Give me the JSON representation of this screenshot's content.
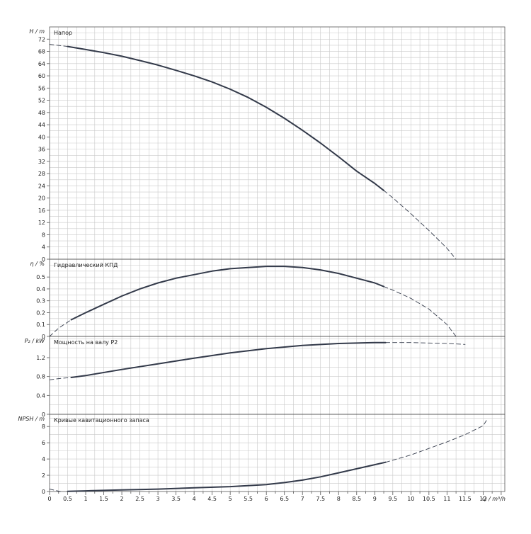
{
  "chart_data": [
    {
      "type": "line",
      "title": "Напор",
      "ylabel": "H / m",
      "ylim": [
        0,
        76
      ],
      "yticks": [
        0,
        4,
        8,
        12,
        16,
        20,
        24,
        28,
        32,
        36,
        40,
        44,
        48,
        52,
        56,
        60,
        64,
        68,
        72
      ],
      "series": [
        {
          "style": "dashed",
          "x": [
            0,
            0.5
          ],
          "y": [
            70.3,
            69.6
          ]
        },
        {
          "style": "solid",
          "x": [
            0.5,
            1,
            1.5,
            2,
            2.5,
            3,
            3.5,
            4,
            4.5,
            5,
            5.5,
            6,
            6.5,
            7,
            7.5,
            8,
            8.5,
            9,
            9.25
          ],
          "y": [
            69.6,
            68.6,
            67.6,
            66.4,
            65.0,
            63.5,
            61.8,
            60.0,
            58.0,
            55.6,
            52.9,
            49.7,
            46.1,
            42.2,
            38.0,
            33.5,
            28.8,
            24.8,
            22.5
          ]
        },
        {
          "style": "dashed",
          "x": [
            9.25,
            9.5,
            10,
            10.5,
            11,
            11.25
          ],
          "y": [
            22.5,
            20.1,
            14.9,
            9.4,
            3.6,
            0
          ]
        }
      ]
    },
    {
      "type": "line",
      "title": "Гидравлический КПД",
      "ylabel": "η / %",
      "ylim": [
        0,
        0.65
      ],
      "yticks": [
        0,
        0.1,
        0.2,
        0.3,
        0.4,
        0.5
      ],
      "series": [
        {
          "style": "dashed",
          "x": [
            0,
            0.25,
            0.5,
            0.6
          ],
          "y": [
            0,
            0.07,
            0.12,
            0.14
          ]
        },
        {
          "style": "solid",
          "x": [
            0.6,
            1,
            1.5,
            2,
            2.5,
            3,
            3.5,
            4,
            4.5,
            5,
            5.5,
            6,
            6.5,
            7,
            7.5,
            8,
            8.5,
            9,
            9.25
          ],
          "y": [
            0.14,
            0.2,
            0.27,
            0.34,
            0.4,
            0.45,
            0.49,
            0.52,
            0.55,
            0.57,
            0.58,
            0.59,
            0.59,
            0.58,
            0.56,
            0.53,
            0.49,
            0.45,
            0.42
          ]
        },
        {
          "style": "dashed",
          "x": [
            9.25,
            9.5,
            10,
            10.5,
            11,
            11.25
          ],
          "y": [
            0.42,
            0.39,
            0.32,
            0.23,
            0.1,
            0
          ]
        }
      ]
    },
    {
      "type": "line",
      "title": "Мощность на валу P2",
      "ylabel": "P₂ / kW",
      "ylim": [
        0,
        1.65
      ],
      "yticks": [
        0,
        0.4,
        0.8,
        1.2
      ],
      "series": [
        {
          "style": "dashed",
          "x": [
            0,
            0.3,
            0.6
          ],
          "y": [
            0.73,
            0.76,
            0.78
          ]
        },
        {
          "style": "solid",
          "x": [
            0.6,
            1,
            2,
            3,
            4,
            5,
            6,
            7,
            8,
            9,
            9.3
          ],
          "y": [
            0.78,
            0.82,
            0.95,
            1.07,
            1.19,
            1.3,
            1.39,
            1.46,
            1.5,
            1.52,
            1.52
          ]
        },
        {
          "style": "dashed",
          "x": [
            9.3,
            10,
            10.5,
            11,
            11.5
          ],
          "y": [
            1.52,
            1.52,
            1.51,
            1.5,
            1.48
          ]
        }
      ]
    },
    {
      "type": "line",
      "title": "Кривые кавитационного запаса",
      "ylabel": "NPSH / m",
      "ylim": [
        0,
        9.5
      ],
      "yticks": [
        0,
        2,
        4,
        6,
        8
      ],
      "series": [
        {
          "style": "dashed",
          "x": [
            0,
            0.3
          ],
          "y": [
            0.3,
            0
          ]
        },
        {
          "style": "solid",
          "x": [
            0.5,
            1,
            2,
            3,
            4,
            5,
            6,
            6.5,
            7,
            7.5,
            8,
            8.5,
            9,
            9.3
          ],
          "y": [
            0.03,
            0.08,
            0.2,
            0.3,
            0.45,
            0.6,
            0.85,
            1.1,
            1.4,
            1.8,
            2.3,
            2.8,
            3.3,
            3.6
          ]
        },
        {
          "style": "dashed",
          "x": [
            9.3,
            10,
            10.5,
            11,
            11.5,
            12,
            12.1
          ],
          "y": [
            3.6,
            4.5,
            5.3,
            6.1,
            7.0,
            8.1,
            8.8
          ]
        }
      ]
    }
  ],
  "x_axis": {
    "label": "Q / m³/h",
    "xlim": [
      0,
      12.6
    ],
    "ticks": [
      "0",
      "0.5",
      "1",
      "1.5",
      "2",
      "2.5",
      "3",
      "3.5",
      "4",
      "4.5",
      "5",
      "5.5",
      "6",
      "6.5",
      "7",
      "7.5",
      "8",
      "8.5",
      "9",
      "9.5",
      "10",
      "10.5",
      "11",
      "11.5",
      "12"
    ],
    "tick_values": [
      0,
      0.5,
      1,
      1.5,
      2,
      2.5,
      3,
      3.5,
      4,
      4.5,
      5,
      5.5,
      6,
      6.5,
      7,
      7.5,
      8,
      8.5,
      9,
      9.5,
      10,
      10.5,
      11,
      11.5,
      12
    ]
  },
  "colors": {
    "curve": "#333a4a",
    "grid": "#c9c9c9",
    "axis": "#555555",
    "background": "#ffffff"
  }
}
